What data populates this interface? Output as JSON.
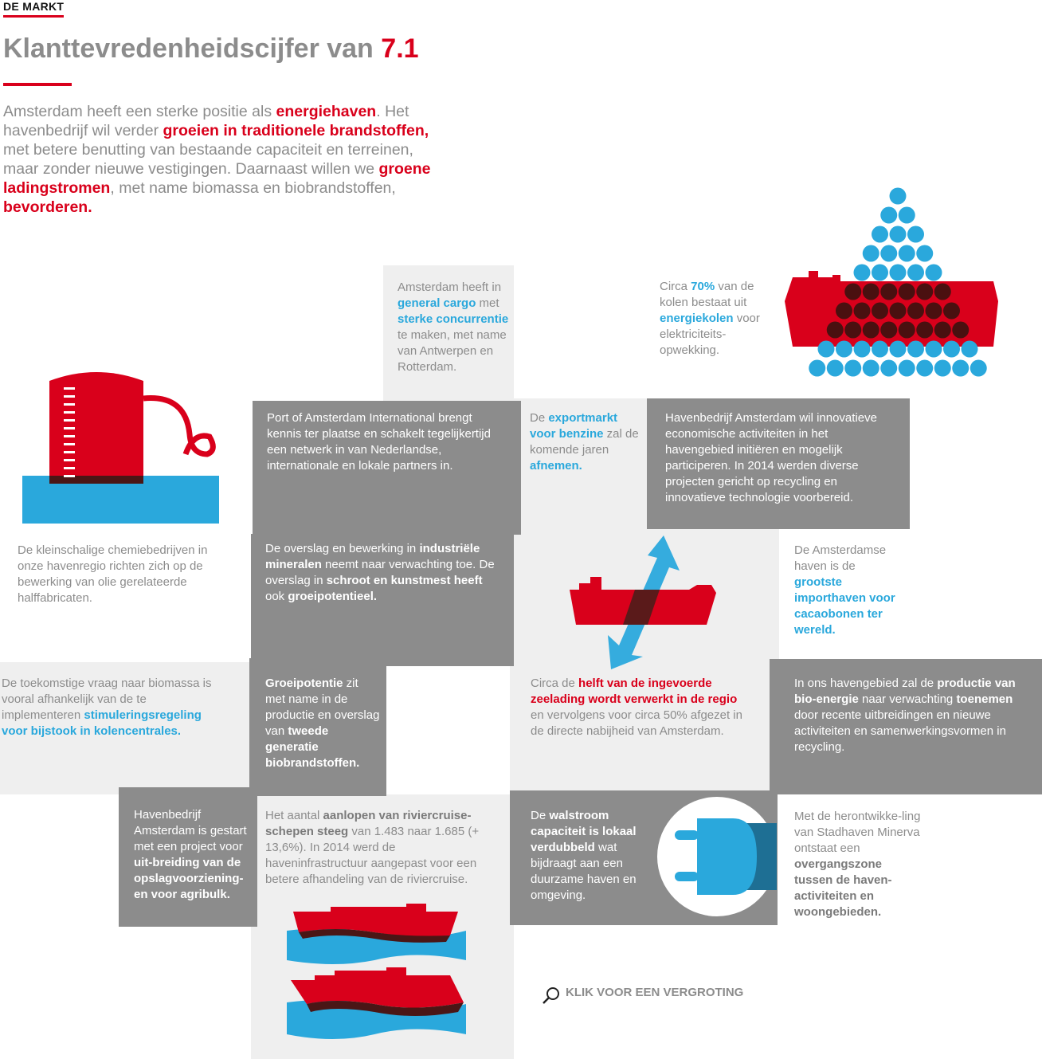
{
  "section_label": "DE MARKT",
  "title": {
    "text": "Klanttevredenheidscijfer van ",
    "value": "7.1"
  },
  "intro": [
    {
      "t": "Amsterdam heeft een sterke positie als ",
      "s": "n"
    },
    {
      "t": "energiehaven",
      "s": "r"
    },
    {
      "t": ". Het havenbedrijf wil verder ",
      "s": "n"
    },
    {
      "t": "groeien in traditionele brandstoffen,",
      "s": "r"
    },
    {
      "t": " met betere benutting van bestaande capaciteit en terreinen, maar zonder nieuwe vestigingen. Daarnaast willen we ",
      "s": "n"
    },
    {
      "t": "groene ladingstromen",
      "s": "r"
    },
    {
      "t": ", met name biomassa en biobrandstoffen, ",
      "s": "n"
    },
    {
      "t": "bevorderen.",
      "s": "r"
    }
  ],
  "blocks": {
    "general_cargo": [
      {
        "t": "Amsterdam heeft in ",
        "s": "n"
      },
      {
        "t": "general cargo",
        "s": "b"
      },
      {
        "t": " met ",
        "s": "n"
      },
      {
        "t": "sterke concurrentie",
        "s": "b"
      },
      {
        "t": " te maken, met name van Antwerpen en Rotterdam.",
        "s": "n"
      }
    ],
    "kolen": [
      {
        "t": "Circa ",
        "s": "n"
      },
      {
        "t": "70%",
        "s": "b"
      },
      {
        "t": " van de kolen bestaat uit ",
        "s": "n"
      },
      {
        "t": "energiekolen",
        "s": "b"
      },
      {
        "t": " voor elektriciteits-opwekking.",
        "s": "n"
      }
    ],
    "port_international": [
      {
        "t": "Port of Amsterdam International brengt kennis ter plaatse en schakelt tegelijkertijd een netwerk in van Nederlandse, internationale en lokale partners in.",
        "s": "n"
      }
    ],
    "benzine": [
      {
        "t": "De ",
        "s": "n"
      },
      {
        "t": "exportmarkt voor benzine",
        "s": "b"
      },
      {
        "t": " zal de komende jaren ",
        "s": "n"
      },
      {
        "t": "afnemen.",
        "s": "b"
      }
    ],
    "innovatie": [
      {
        "t": "Havenbedrijf Amsterdam wil innovatieve economische activiteiten in het havengebied initiëren en mogelijk participeren. In 2014 werden diverse projecten gericht op recycling en innovatieve technologie voorbereid.",
        "s": "n"
      }
    ],
    "chemie": [
      {
        "t": "De kleinschalige chemiebedrijven in onze havenregio richten zich op de bewerking van olie gerelateerde halffabricaten.",
        "s": "n"
      }
    ],
    "overslag": [
      {
        "t": "De overslag en bewerking in ",
        "s": "n"
      },
      {
        "t": "industriële mineralen",
        "s": "w"
      },
      {
        "t": " neemt naar verwachting toe. De overslag in ",
        "s": "n"
      },
      {
        "t": "schroot en kunstmest heeft",
        "s": "w"
      },
      {
        "t": " ook ",
        "s": "n"
      },
      {
        "t": "groeipotentieel.",
        "s": "w"
      }
    ],
    "cacao": [
      {
        "t": "De Amsterdamse haven is de ",
        "s": "n"
      },
      {
        "t": "grootste importhaven voor cacaobonen ter wereld.",
        "s": "b"
      }
    ],
    "biomassa": [
      {
        "t": "De toekomstige vraag naar biomassa is vooral afhankelijk van de te implementeren ",
        "s": "n"
      },
      {
        "t": "stimuleringsregeling voor bijstook in kolencentrales.",
        "s": "b"
      }
    ],
    "groeipotentie": [
      {
        "t": "Groeipotentie",
        "s": "w"
      },
      {
        "t": " zit met name in de productie en overslag van ",
        "s": "n"
      },
      {
        "t": "tweede generatie biobrandstoffen.",
        "s": "w"
      }
    ],
    "zeelading": [
      {
        "t": "Circa de ",
        "s": "n"
      },
      {
        "t": "helft van de ingevoerde zeelading wordt verwerkt in de regio",
        "s": "r"
      },
      {
        "t": " en vervolgens voor circa 50% afgezet in de directe nabijheid van Amsterdam.",
        "s": "n"
      }
    ],
    "bioenergie": [
      {
        "t": "In ons havengebied zal de ",
        "s": "n"
      },
      {
        "t": "productie van bio-energie",
        "s": "w"
      },
      {
        "t": " naar verwachting ",
        "s": "n"
      },
      {
        "t": "toenemen",
        "s": "w"
      },
      {
        "t": " door recente uitbreidingen en nieuwe activiteiten en samenwerkingsvormen in recycling.",
        "s": "n"
      }
    ],
    "agribulk": [
      {
        "t": "Havenbedrijf Amsterdam is gestart met een project voor ",
        "s": "n"
      },
      {
        "t": "uit-breiding van de opslagvoorziening-en voor agribulk.",
        "s": "w"
      }
    ],
    "riviercruise": [
      {
        "t": "Het aantal ",
        "s": "n"
      },
      {
        "t": "aanlopen van riviercruise-schepen steeg",
        "s": "g"
      },
      {
        "t": " van 1.483 naar 1.685 (+ 13,6%). In 2014 werd de haveninfrastructuur aangepast voor een betere afhandeling van de riviercruise.",
        "s": "n"
      }
    ],
    "walstroom": [
      {
        "t": "De ",
        "s": "n"
      },
      {
        "t": "walstroom capaciteit is lokaal verdubbeld",
        "s": "w"
      },
      {
        "t": " wat bijdraagt aan een duurzame haven en omgeving.",
        "s": "n"
      }
    ],
    "minerva": [
      {
        "t": "Met de herontwikke-ling van Stadhaven Minerva ontstaat een ",
        "s": "n"
      },
      {
        "t": "overgangszone tussen de haven-activiteiten en woongebieden.",
        "s": "g"
      }
    ]
  },
  "zoom_label": "KLIK VOOR EEN VERGROTING",
  "colors": {
    "red": "#d9001b",
    "blue": "#2aa8dc",
    "gray": "#8c8c8c",
    "light": "#efefef"
  }
}
